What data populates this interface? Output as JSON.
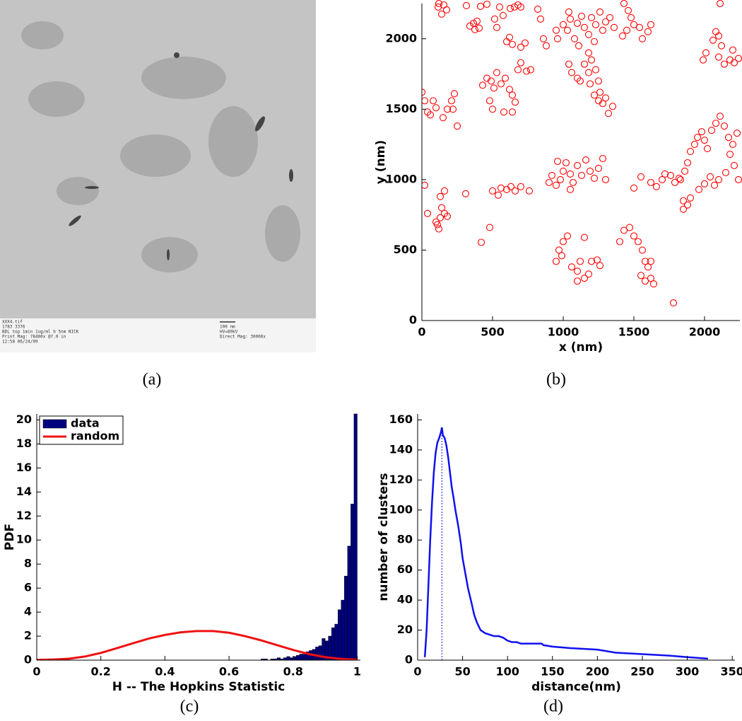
{
  "image_panel": {
    "caption": "(a)",
    "labels": [
      "XXX4.tif",
      "1783 3376",
      "BDL top 1min 1ug/ml b 5nm NICK",
      "Print Mag: 78400x @7.0 in",
      "12:58 06/24/09",
      "100 nm",
      "HV=80kV",
      "Direct Mag: 30000x"
    ]
  },
  "chart_data": [
    {
      "type": "scatter",
      "caption": "(b)",
      "xlabel": "x (nm)",
      "ylabel": "y (nm)",
      "color": "red",
      "marker": "open-circle",
      "xlim": [
        0,
        2250
      ],
      "ylim": [
        0,
        2250
      ],
      "xticks": [
        0,
        500,
        1000,
        1500,
        2000
      ],
      "yticks": [
        0,
        500,
        1000,
        1500,
        2000
      ],
      "x": [
        115,
        140,
        175,
        120,
        155,
        315,
        415,
        460,
        550,
        575,
        625,
        655,
        700,
        680,
        340,
        375,
        405,
        390,
        365,
        515,
        530,
        600,
        620,
        640,
        700,
        730,
        860,
        880,
        820,
        840,
        1000,
        1030,
        1050,
        1080,
        1100,
        1130,
        1150,
        1180,
        1200,
        1230,
        1260,
        1280,
        1300,
        1330,
        1360,
        960,
        950,
        1040,
        1110,
        1220,
        1150,
        1180,
        1200,
        1230,
        1250,
        1190,
        1220,
        1250,
        1280,
        1300,
        1260,
        1350,
        1320,
        1100,
        1060,
        1120,
        1040,
        1180,
        1430,
        1460,
        1480,
        1500,
        1450,
        1420,
        1540,
        1560,
        1600,
        1620,
        2110,
        1990,
        2010,
        2060,
        2080,
        2100,
        2120,
        2100,
        2140,
        2180,
        2210,
        2240,
        2200,
        430,
        460,
        490,
        510,
        480,
        500,
        530,
        560,
        590,
        620,
        640,
        660,
        580,
        640,
        680,
        700,
        740,
        770,
        0,
        20,
        40,
        60,
        80,
        100,
        150,
        180,
        210,
        230,
        250,
        220,
        1830,
        1860,
        1880,
        1900,
        1930,
        1950,
        1980,
        2000,
        2020,
        2050,
        2080,
        2110,
        2140,
        2170,
        2200,
        2230,
        2180,
        2210,
        2150,
        2100,
        2070,
        2040,
        2000,
        1960,
        2240,
        900,
        920,
        950,
        980,
        1000,
        1020,
        1050,
        1070,
        1100,
        1130,
        1160,
        1190,
        1220,
        1250,
        1280,
        1300,
        1050,
        960,
        1500,
        1550,
        1620,
        1660,
        1700,
        1720,
        1760,
        1790,
        1820,
        1850,
        1880,
        1900,
        1850,
        100,
        120,
        130,
        140,
        160,
        130,
        160,
        180,
        110,
        500,
        540,
        560,
        600,
        630,
        660,
        700,
        760,
        310,
        20,
        40,
        950,
        970,
        1000,
        1030,
        990,
        1060,
        1100,
        1120,
        1150,
        1200,
        1240,
        1260,
        1100,
        1150,
        1180,
        1400,
        1430,
        1470,
        1500,
        1530,
        1560,
        1580,
        1600,
        1550,
        1580,
        1620,
        1640,
        1620,
        1780,
        420,
        480
      ],
      "values": [
        2225,
        2175,
        2205,
        2250,
        2240,
        2235,
        2230,
        2245,
        2225,
        2165,
        2215,
        2225,
        2225,
        2240,
        2090,
        2065,
        2075,
        2125,
        2110,
        2140,
        2080,
        1980,
        2010,
        1960,
        1940,
        1970,
        2000,
        1950,
        2210,
        2140,
        2100,
        2060,
        2140,
        2000,
        2110,
        2160,
        2080,
        2030,
        2150,
        2100,
        2190,
        2060,
        2120,
        2150,
        2080,
        2000,
        2060,
        2190,
        1950,
        1980,
        1820,
        1760,
        1850,
        1780,
        1700,
        1680,
        1600,
        1560,
        1540,
        1580,
        1620,
        1520,
        1470,
        1720,
        1760,
        1700,
        1820,
        1900,
        2250,
        2200,
        2150,
        2100,
        2060,
        2020,
        2080,
        2000,
        2050,
        2100,
        2250,
        1850,
        1900,
        1990,
        2050,
        2020,
        1950,
        1870,
        1820,
        1850,
        1830,
        1860,
        1920,
        1670,
        1720,
        1700,
        1650,
        1560,
        1500,
        1760,
        1680,
        1720,
        1640,
        1600,
        1550,
        1480,
        1480,
        1780,
        1830,
        1770,
        1780,
        1620,
        1560,
        1480,
        1460,
        1560,
        1510,
        1440,
        1500,
        1560,
        1610,
        1380,
        1500,
        1000,
        1060,
        1120,
        1200,
        1250,
        1300,
        1340,
        1280,
        1220,
        1350,
        1400,
        1450,
        1380,
        1300,
        1250,
        1330,
        1180,
        1100,
        1050,
        1000,
        960,
        1020,
        970,
        930,
        1000,
        980,
        1030,
        960,
        1000,
        1060,
        1120,
        1040,
        980,
        1100,
        1030,
        1140,
        1060,
        1010,
        1080,
        1150,
        1000,
        930,
        1130,
        940,
        1020,
        980,
        950,
        1000,
        1040,
        1030,
        980,
        1010,
        850,
        820,
        870,
        790,
        700,
        650,
        730,
        800,
        760,
        880,
        920,
        740,
        680,
        920,
        890,
        940,
        930,
        950,
        920,
        950,
        920,
        900,
        960,
        760,
        420,
        500,
        560,
        600,
        460,
        380,
        350,
        420,
        590,
        420,
        430,
        390,
        280,
        300,
        330,
        560,
        640,
        660,
        600,
        560,
        500,
        420,
        380,
        320,
        280,
        300,
        260,
        420,
        125,
        555,
        660
      ]
    },
    {
      "type": "histogram",
      "caption": "(c)",
      "xlabel": "H -- The Hopkins Statistic",
      "ylabel": "PDF",
      "legend": "upper left",
      "xlim": [
        0,
        1.01
      ],
      "ylim": [
        0,
        20.5
      ],
      "xticks": [
        0,
        0.2,
        0.4,
        0.6,
        0.8,
        1
      ],
      "yticks": [
        0,
        2,
        4,
        6,
        8,
        10,
        12,
        14,
        16,
        18,
        20
      ],
      "bins": [
        0.7,
        0.71,
        0.72,
        0.73,
        0.74,
        0.75,
        0.76,
        0.77,
        0.78,
        0.79,
        0.8,
        0.81,
        0.82,
        0.83,
        0.84,
        0.85,
        0.86,
        0.87,
        0.88,
        0.89,
        0.9,
        0.91,
        0.92,
        0.93,
        0.94,
        0.95,
        0.96,
        0.97,
        0.98,
        0.99,
        1.0
      ],
      "series": [
        {
          "name": "data",
          "color": "#00007f",
          "values": [
            0.1,
            0.1,
            0,
            0.1,
            0.1,
            0.2,
            0.1,
            0.2,
            0.3,
            0.2,
            0.3,
            0.4,
            0.5,
            0.5,
            0.7,
            0.8,
            0.9,
            1.1,
            1.2,
            1.8,
            1.6,
            2.0,
            2.7,
            3.0,
            4.2,
            5.0,
            7.0,
            9.5,
            13.0,
            20.5
          ]
        },
        {
          "name": "random",
          "color": "#ee1111",
          "x": [
            0,
            0.05,
            0.1,
            0.15,
            0.2,
            0.25,
            0.3,
            0.35,
            0.4,
            0.45,
            0.5,
            0.55,
            0.6,
            0.65,
            0.7,
            0.75,
            0.8,
            0.85,
            0.9,
            0.95,
            1.0
          ],
          "values": [
            0.02,
            0.05,
            0.12,
            0.3,
            0.6,
            1.0,
            1.4,
            1.8,
            2.1,
            2.32,
            2.42,
            2.42,
            2.28,
            2.0,
            1.65,
            1.25,
            0.85,
            0.5,
            0.25,
            0.1,
            0.04
          ]
        }
      ]
    },
    {
      "type": "line",
      "caption": "(d)",
      "xlabel": "distance(nm)",
      "ylabel": "number of clusters",
      "color": "#1010ee",
      "vline_x": 27,
      "xlim": [
        0,
        353
      ],
      "ylim": [
        0,
        164
      ],
      "xticks": [
        0,
        50,
        100,
        150,
        200,
        250,
        300,
        350
      ],
      "yticks": [
        0,
        20,
        40,
        60,
        80,
        100,
        120,
        140,
        160
      ],
      "x": [
        8,
        10,
        12,
        14,
        16,
        18,
        20,
        22,
        24,
        26,
        27,
        28,
        30,
        32,
        34,
        36,
        38,
        40,
        42,
        45,
        48,
        50,
        53,
        56,
        60,
        63,
        66,
        70,
        75,
        80,
        85,
        90,
        95,
        100,
        105,
        110,
        115,
        120,
        130,
        138,
        140,
        150,
        170,
        200,
        220,
        250,
        280,
        300,
        323
      ],
      "values": [
        2,
        20,
        50,
        80,
        105,
        125,
        138,
        145,
        148,
        152,
        155,
        150,
        148,
        143,
        135,
        125,
        115,
        108,
        100,
        90,
        78,
        68,
        58,
        48,
        38,
        30,
        25,
        20,
        18,
        17,
        16,
        16,
        15,
        13,
        12,
        12,
        11,
        11,
        11,
        11,
        10,
        9,
        8,
        7,
        5,
        4,
        3,
        2,
        1
      ]
    }
  ]
}
